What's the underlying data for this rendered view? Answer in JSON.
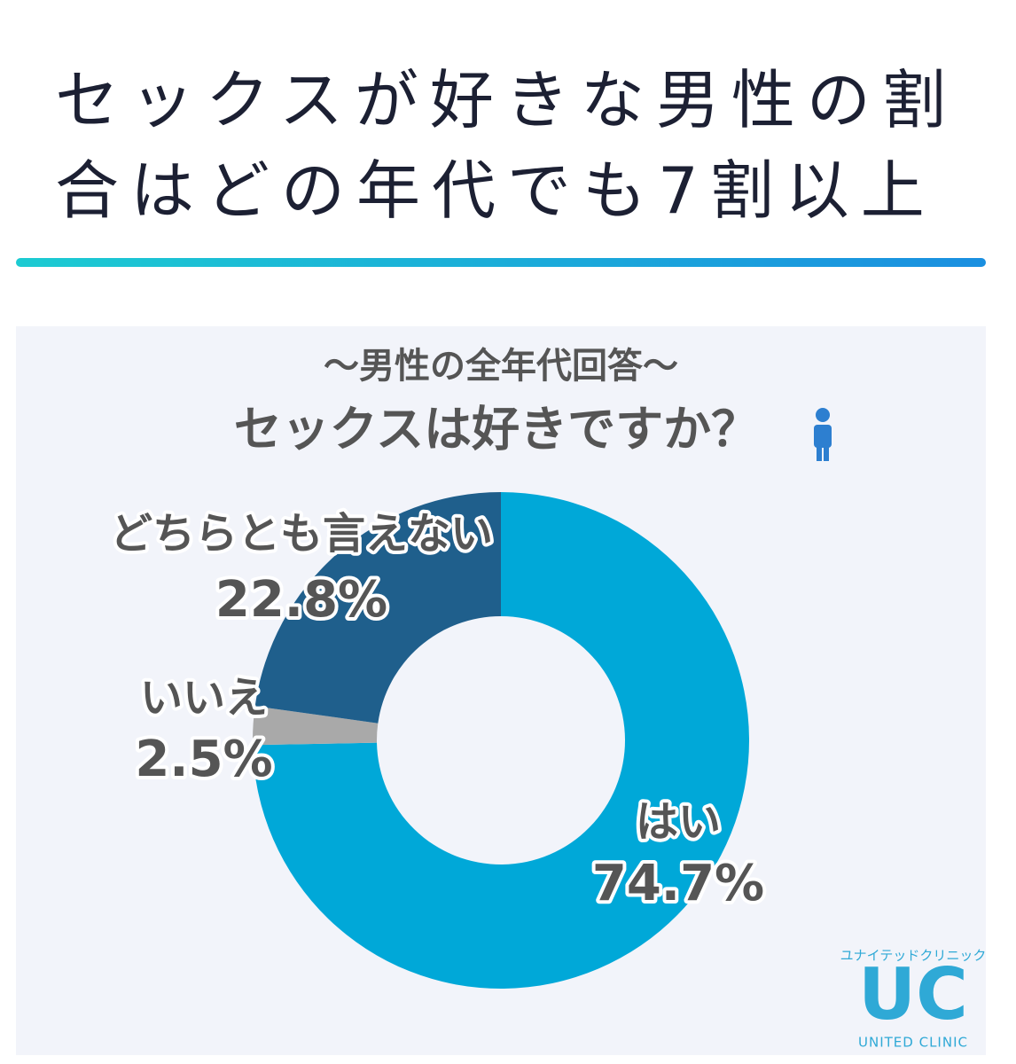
{
  "header": {
    "title": "セックスが好きな男性の割合はどの年代でも7割以上"
  },
  "chart_data": {
    "type": "donut",
    "subtitle": "〜男性の全年代回答〜",
    "title": "セックスは好きですか？",
    "categories": [
      "はい",
      "いいえ",
      "どちらとも言えない"
    ],
    "values": [
      74.7,
      2.5,
      22.8
    ],
    "value_labels": [
      "74.7%",
      "2.5%",
      "22.8%"
    ],
    "colors": [
      "#00a8d8",
      "#a9a9a9",
      "#1f5f8c"
    ]
  },
  "logo": {
    "kana": "ユナイテッドクリニック",
    "mark": "UC",
    "name": "UNITED CLINIC"
  }
}
